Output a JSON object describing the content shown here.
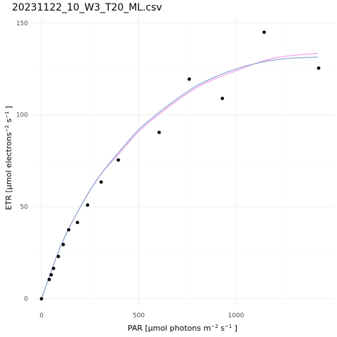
{
  "chart_data": {
    "type": "scatter",
    "title": "20231122_10_W3_T20_ML.csv",
    "xlabel": {
      "prefix": "PAR [µmol photons m",
      "sup1": "−2",
      "mid": " s",
      "sup2": "−1",
      "suffix": " ]"
    },
    "ylabel": {
      "prefix": "ETR [µmol electrons",
      "sup1": "−2",
      "mid": " s",
      "sup2": "−1",
      "suffix": " ]"
    },
    "xlim": [
      -40,
      1505
    ],
    "ylim": [
      -4,
      153
    ],
    "x_ticks": [
      0,
      500,
      1000
    ],
    "y_ticks": [
      0,
      50,
      100,
      150
    ],
    "x_minor": [
      250,
      750,
      1250
    ],
    "y_minor": [
      25,
      75,
      125
    ],
    "grid": true,
    "points": [
      {
        "x": 0,
        "y": 0
      },
      {
        "x": 40,
        "y": 10.5
      },
      {
        "x": 50,
        "y": 13
      },
      {
        "x": 62,
        "y": 16.5
      },
      {
        "x": 87,
        "y": 23
      },
      {
        "x": 112,
        "y": 29.5
      },
      {
        "x": 140,
        "y": 37.5
      },
      {
        "x": 185,
        "y": 41.5
      },
      {
        "x": 237,
        "y": 51
      },
      {
        "x": 307,
        "y": 63.5
      },
      {
        "x": 395,
        "y": 75.5
      },
      {
        "x": 605,
        "y": 90.5
      },
      {
        "x": 760,
        "y": 119.5
      },
      {
        "x": 930,
        "y": 109
      },
      {
        "x": 1145,
        "y": 145
      },
      {
        "x": 1425,
        "y": 125.5
      }
    ],
    "fits": [
      {
        "color": "#f4a3e8",
        "x": [
          0,
          100,
          200,
          300,
          400,
          500,
          600,
          700,
          800,
          900,
          1000,
          1100,
          1200,
          1300,
          1420
        ],
        "y": [
          0,
          29,
          50,
          67,
          79,
          91,
          100,
          108,
          115,
          120,
          124,
          128,
          131,
          132.5,
          133.5
        ]
      },
      {
        "color": "#8fa8d2",
        "x": [
          0,
          100,
          200,
          300,
          400,
          500,
          600,
          700,
          800,
          900,
          1000,
          1100,
          1200,
          1300,
          1420
        ],
        "y": [
          0,
          29,
          50,
          67,
          80,
          92,
          101,
          109,
          116,
          121,
          125,
          128,
          130,
          131,
          131.5
        ]
      }
    ]
  }
}
